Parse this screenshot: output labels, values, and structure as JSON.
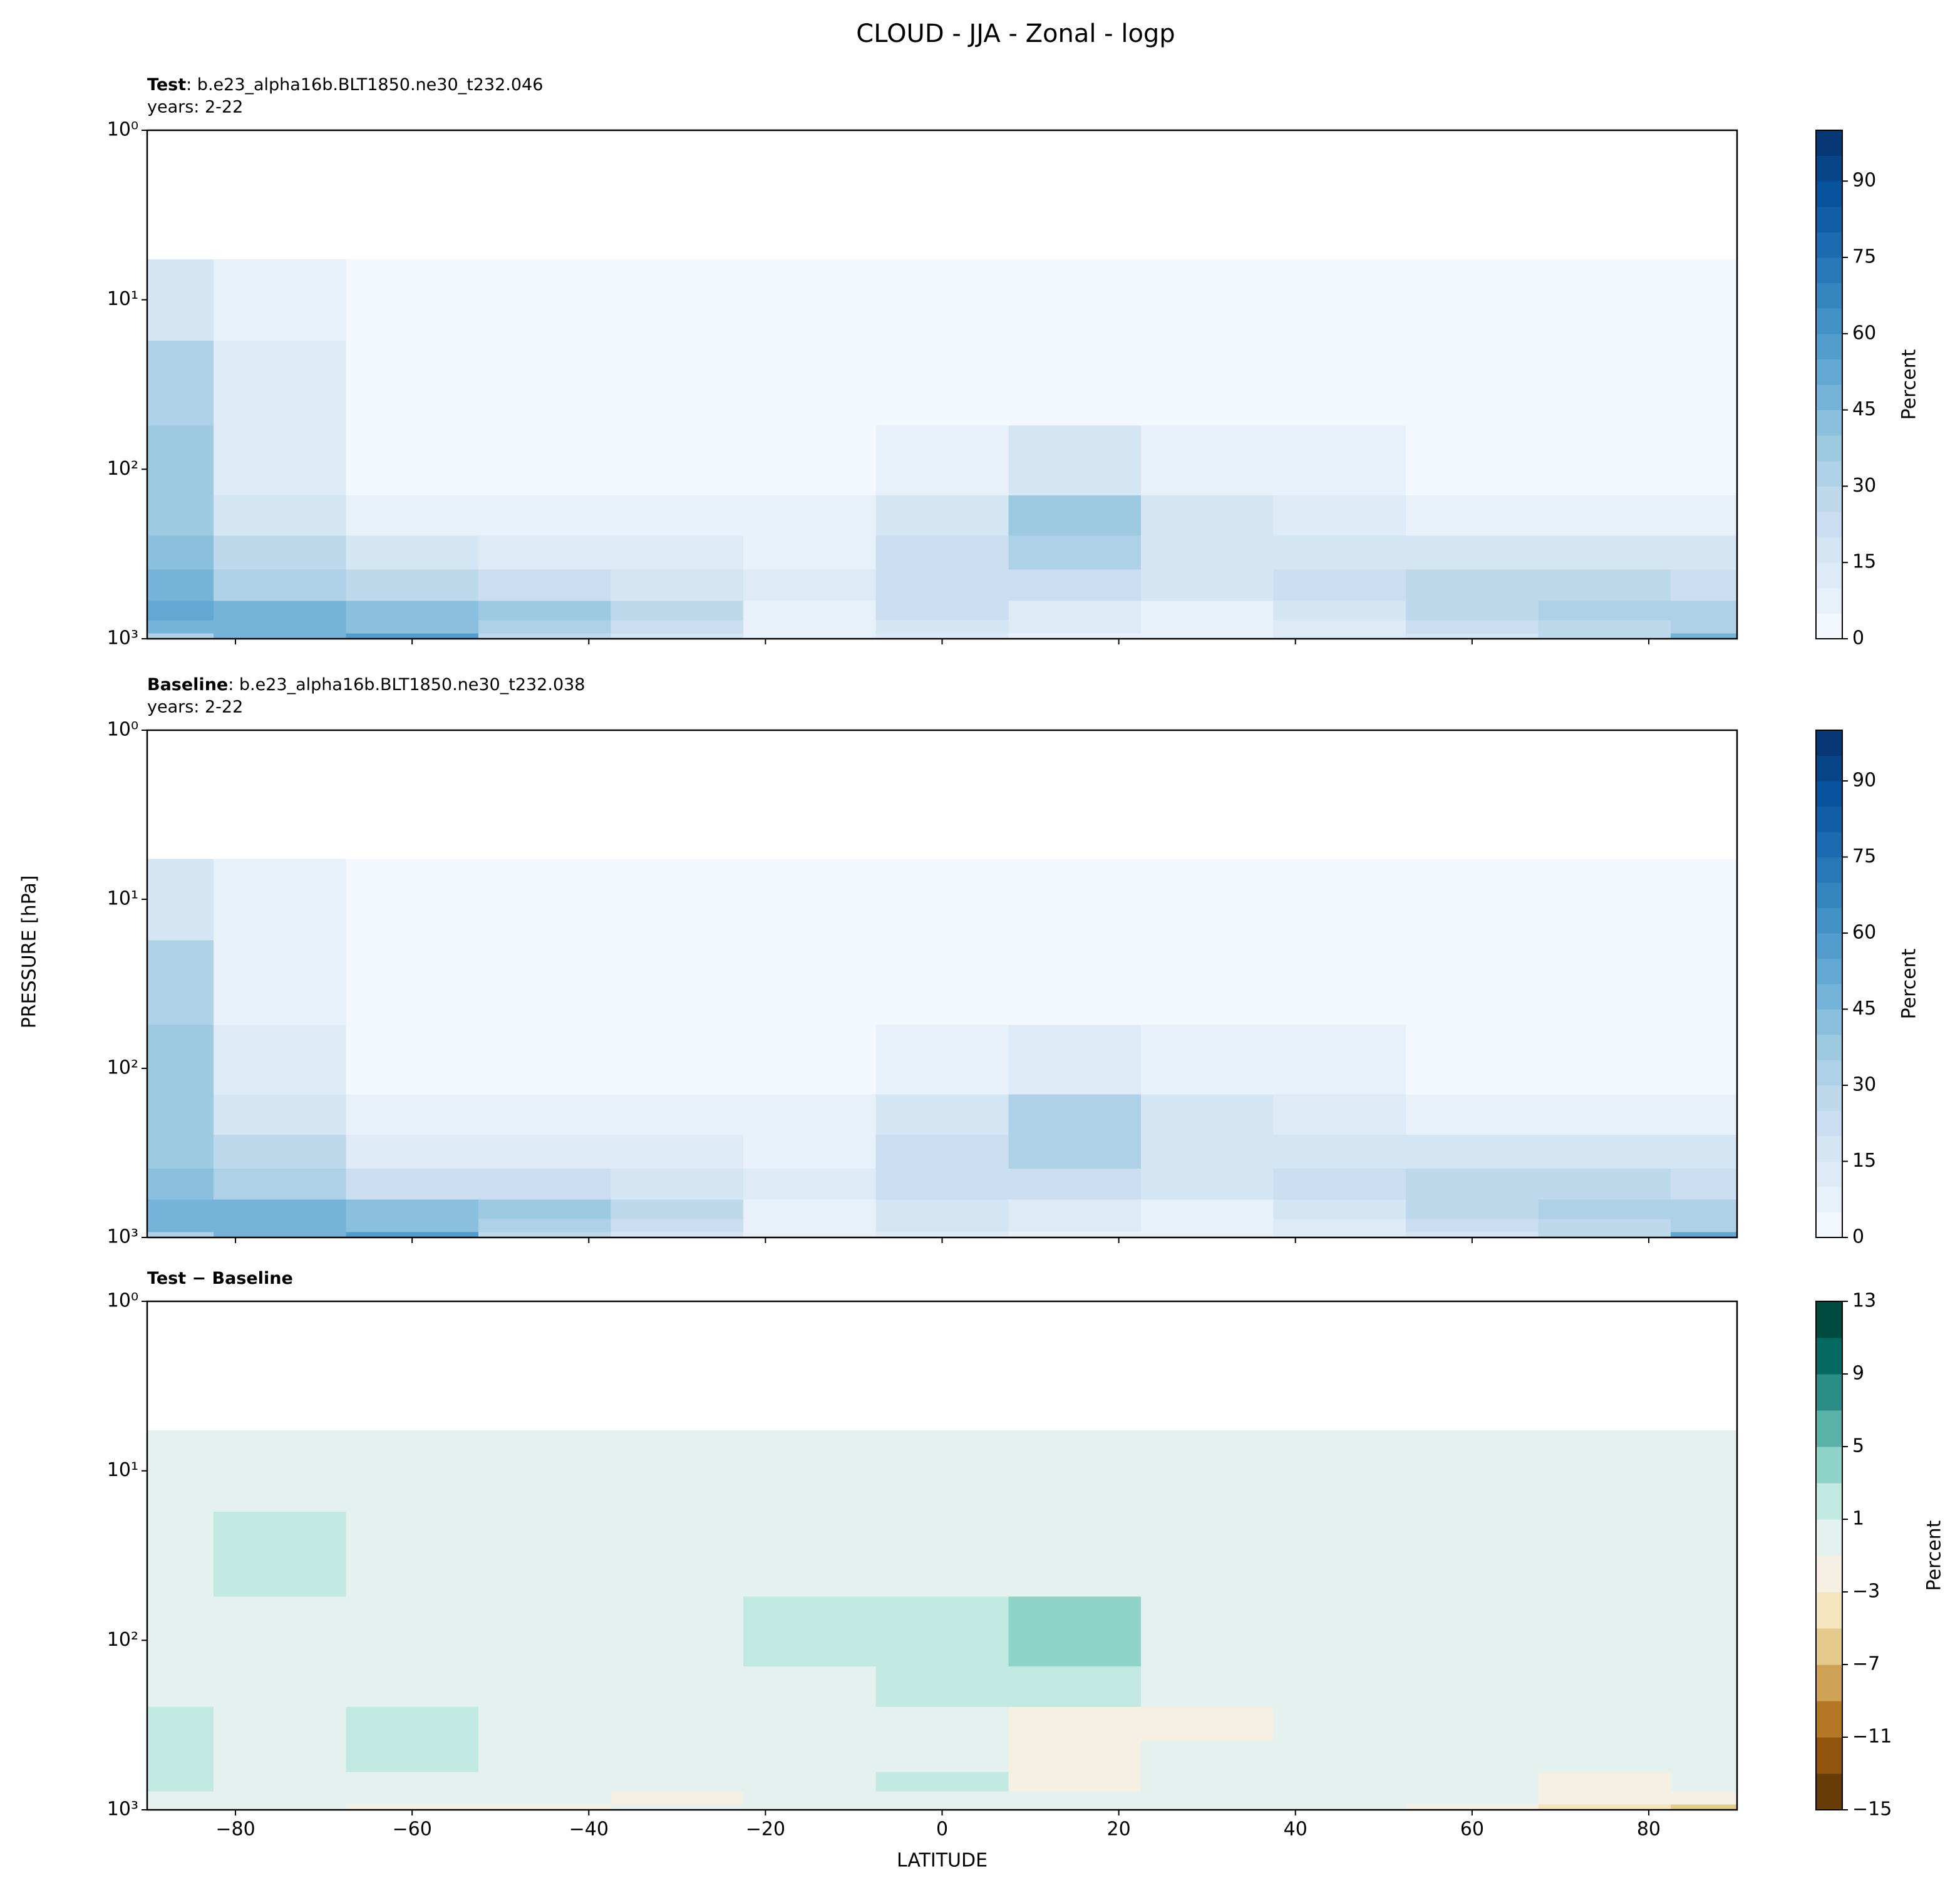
{
  "title": "CLOUD - JJA - Zonal - logp",
  "ylabel": "PRESSURE [hPa]",
  "chart_data": [
    {
      "type": "contour",
      "case_label": "Test",
      "case_name": ": b.e23_alpha16b.BLT1850.ne30_t232.046",
      "years": "years: 2-22",
      "x": [
        -90,
        -75,
        -60,
        -45,
        -30,
        -15,
        0,
        15,
        30,
        45,
        60,
        75,
        90
      ],
      "y": [
        1000,
        850,
        700,
        500,
        300,
        200,
        100,
        30,
        10
      ],
      "z": [
        [
          30,
          45,
          55,
          25,
          15,
          8,
          10,
          8,
          5,
          10,
          15,
          25,
          45
        ],
        [
          45,
          45,
          40,
          30,
          22,
          8,
          15,
          12,
          5,
          10,
          20,
          25,
          30
        ],
        [
          50,
          45,
          40,
          35,
          25,
          5,
          20,
          12,
          8,
          15,
          25,
          30,
          30
        ],
        [
          45,
          30,
          25,
          22,
          18,
          10,
          20,
          20,
          15,
          20,
          25,
          25,
          22
        ],
        [
          40,
          25,
          15,
          12,
          10,
          8,
          20,
          30,
          15,
          15,
          15,
          15,
          15
        ],
        [
          35,
          18,
          8,
          6,
          5,
          5,
          18,
          35,
          15,
          10,
          8,
          8,
          8
        ],
        [
          35,
          10,
          3,
          3,
          3,
          3,
          8,
          15,
          8,
          5,
          3,
          3,
          3
        ],
        [
          30,
          10,
          2,
          2,
          2,
          2,
          2,
          2,
          2,
          2,
          2,
          2,
          2
        ],
        [
          18,
          6,
          2,
          1,
          1,
          1,
          1,
          1,
          1,
          1,
          1,
          1,
          1
        ]
      ],
      "xlim": [
        -90,
        90
      ],
      "xticks": [
        -80,
        -60,
        -40,
        -20,
        0,
        20,
        40,
        60,
        80
      ],
      "ylim": [
        1000,
        1
      ],
      "log_y": true,
      "yticks": [
        {
          "value": 1,
          "label": "10⁰"
        },
        {
          "value": 10,
          "label": "10¹"
        },
        {
          "value": 100,
          "label": "10²"
        },
        {
          "value": 1000,
          "label": "10³"
        }
      ],
      "levels": [
        0,
        5,
        10,
        15,
        20,
        25,
        30,
        35,
        40,
        45,
        50,
        55,
        60,
        65,
        70,
        75,
        80,
        85,
        90,
        95,
        100
      ],
      "cmap": [
        "#f7fbff",
        "#deebf7",
        "#c6dbef",
        "#9ecae1",
        "#6baed6",
        "#4292c6",
        "#2171b5",
        "#08519c",
        "#08306b"
      ],
      "colorbar_label": "Percent",
      "colorbar_ticks": [
        0,
        15,
        30,
        45,
        60,
        75,
        90
      ]
    },
    {
      "type": "contour",
      "case_label": "Baseline",
      "case_name": ": b.e23_alpha16b.BLT1850.ne30_t232.038",
      "years": "years: 2-22",
      "x": [
        -90,
        -75,
        -60,
        -45,
        -30,
        -15,
        0,
        15,
        30,
        45,
        60,
        75,
        90
      ],
      "y": [
        1000,
        850,
        700,
        500,
        300,
        200,
        100,
        30,
        10
      ],
      "z": [
        [
          30,
          46,
          57,
          27,
          16,
          8,
          10,
          9,
          5,
          11,
          17,
          29,
          51
        ],
        [
          45,
          45,
          41,
          31,
          24,
          8,
          16,
          13,
          5,
          10,
          21,
          27,
          32
        ],
        [
          49,
          45,
          40,
          35,
          25,
          5,
          19,
          14,
          8,
          15,
          25,
          32,
          31
        ],
        [
          43,
          30,
          24,
          22,
          18,
          10,
          21,
          22,
          15,
          20,
          26,
          25,
          22
        ],
        [
          38,
          25,
          14,
          12,
          10,
          8,
          21,
          32,
          17,
          15,
          15,
          15,
          15
        ],
        [
          35,
          18,
          8,
          6,
          5,
          5,
          17,
          34,
          16,
          10,
          8,
          8,
          8
        ],
        [
          35,
          10,
          3,
          3,
          3,
          2,
          6,
          12,
          8,
          5,
          3,
          3,
          3
        ],
        [
          30,
          9,
          2,
          2,
          2,
          2,
          2,
          2,
          2,
          2,
          2,
          2,
          2
        ],
        [
          18,
          6,
          2,
          1,
          1,
          1,
          1,
          1,
          1,
          1,
          1,
          1,
          1
        ]
      ],
      "xlim": [
        -90,
        90
      ],
      "xticks": [
        -80,
        -60,
        -40,
        -20,
        0,
        20,
        40,
        60,
        80
      ],
      "ylim": [
        1000,
        1
      ],
      "log_y": true,
      "yticks": [
        {
          "value": 1,
          "label": "10⁰"
        },
        {
          "value": 10,
          "label": "10¹"
        },
        {
          "value": 100,
          "label": "10²"
        },
        {
          "value": 1000,
          "label": "10³"
        }
      ],
      "levels": [
        0,
        5,
        10,
        15,
        20,
        25,
        30,
        35,
        40,
        45,
        50,
        55,
        60,
        65,
        70,
        75,
        80,
        85,
        90,
        95,
        100
      ],
      "cmap": [
        "#f7fbff",
        "#deebf7",
        "#c6dbef",
        "#9ecae1",
        "#6baed6",
        "#4292c6",
        "#2171b5",
        "#08519c",
        "#08306b"
      ],
      "colorbar_label": "Percent",
      "colorbar_ticks": [
        0,
        15,
        30,
        45,
        60,
        75,
        90
      ]
    },
    {
      "type": "contour",
      "case_label": "Test − Baseline",
      "x": [
        -90,
        -75,
        -60,
        -45,
        -30,
        -15,
        0,
        15,
        30,
        45,
        60,
        75,
        90
      ],
      "y": [
        1000,
        850,
        700,
        500,
        300,
        200,
        100,
        30,
        10
      ],
      "z": [
        [
          0,
          -1,
          -2,
          -2,
          -1,
          0,
          0,
          -1,
          0,
          -1,
          -2,
          -4,
          -6
        ],
        [
          0,
          0,
          -1,
          -1,
          -2,
          0,
          -1,
          -1,
          0,
          0,
          -1,
          -2,
          -2
        ],
        [
          1,
          0,
          0,
          0,
          0,
          0,
          1,
          -2,
          0,
          0,
          0,
          -2,
          -1
        ],
        [
          2,
          0,
          1,
          0,
          0,
          0,
          -1,
          -2,
          0,
          0,
          -1,
          0,
          0
        ],
        [
          2,
          0,
          1,
          0,
          0,
          0,
          -1,
          -2,
          -2,
          0,
          0,
          0,
          0
        ],
        [
          0,
          0,
          0,
          0,
          0,
          0,
          1,
          1,
          -1,
          0,
          0,
          0,
          0
        ],
        [
          0,
          0,
          0,
          0,
          0,
          1,
          2,
          3,
          0,
          0,
          0,
          0,
          0
        ],
        [
          0,
          1,
          0,
          0,
          0,
          0,
          0,
          0,
          0,
          0,
          0,
          0,
          0
        ],
        [
          0,
          0,
          0,
          0,
          0,
          0,
          0,
          0,
          0,
          0,
          0,
          0,
          0
        ]
      ],
      "xlim": [
        -90,
        90
      ],
      "xticks": [
        {
          "value": -80,
          "label": "−80"
        },
        {
          "value": -60,
          "label": "−60"
        },
        {
          "value": -40,
          "label": "−40"
        },
        {
          "value": -20,
          "label": "−20"
        },
        0,
        20,
        40,
        60,
        80
      ],
      "xlabel": "LATITUDE",
      "ylim": [
        1000,
        1
      ],
      "log_y": true,
      "yticks": [
        {
          "value": 1,
          "label": "10⁰"
        },
        {
          "value": 10,
          "label": "10¹"
        },
        {
          "value": 100,
          "label": "10²"
        },
        {
          "value": 1000,
          "label": "10³"
        }
      ],
      "levels": [
        -15,
        -13,
        -11,
        -9,
        -7,
        -5,
        -3,
        -1,
        1,
        3,
        5,
        7,
        9,
        11,
        13
      ],
      "cmap": [
        "#543005",
        "#8c510a",
        "#bf812d",
        "#dfc27d",
        "#f6e8c3",
        "#f5f5f5",
        "#c7eae5",
        "#80cdc1",
        "#35978f",
        "#01665e",
        "#003c30"
      ],
      "colorbar_label": "Percent",
      "colorbar_ticks": [
        {
          "value": -15,
          "label": "−15"
        },
        {
          "value": -11,
          "label": "−11"
        },
        {
          "value": -7,
          "label": "−7"
        },
        {
          "value": -3,
          "label": "−3"
        },
        1,
        5,
        9,
        13
      ]
    }
  ]
}
